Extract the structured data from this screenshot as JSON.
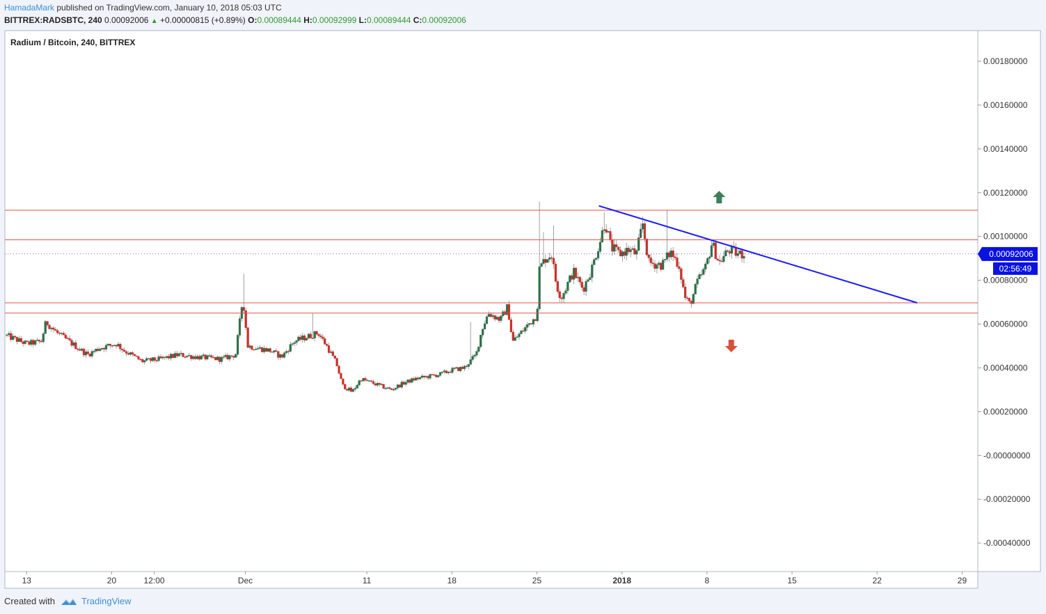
{
  "header": {
    "author": "HamadaMark",
    "published_text": "published on TradingView.com, January 10, 2018 05:03 UTC",
    "symbol": "BITTREX:RADSBTC, 240",
    "last": "0.00092006",
    "change": "+0.00000815 (+0.89%)",
    "o_label": "O:",
    "o_value": "0.00089444",
    "h_label": "H:",
    "h_value": "0.00092999",
    "l_label": "L:",
    "l_value": "0.00089444",
    "c_label": "C:",
    "c_value": "0.00092006"
  },
  "footer": {
    "created_with": "Created with",
    "brand": "TradingView"
  },
  "colors": {
    "up": "#2f6e4a",
    "down": "#c8312a",
    "wick": "#888888",
    "resistance": "#e0504a",
    "trendline": "#1a1aff",
    "price_tag": "#0a12e0",
    "arrow_up": "#3d7f5a",
    "arrow_down": "#d9503a"
  },
  "chart_data": {
    "type": "candlestick",
    "title": "Radium / Bitcoin, 240, BITTREX",
    "y_ticks": [
      "0.00180000",
      "0.00160000",
      "0.00140000",
      "0.00120000",
      "0.00100000",
      "0.00080000",
      "0.00060000",
      "0.00040000",
      "0.00020000",
      "-0.00000000",
      "-0.00020000",
      "-0.00040000"
    ],
    "y_tick_values": [
      0.0018,
      0.0016,
      0.0014,
      0.0012,
      0.001,
      0.0008,
      0.0006,
      0.0004,
      0.0002,
      0,
      -0.0002,
      -0.0004
    ],
    "ylim": [
      -0.00053,
      0.00194
    ],
    "x_ticks": [
      {
        "label": "13",
        "day": 0,
        "bold": false
      },
      {
        "label": "20",
        "day": 7,
        "bold": false
      },
      {
        "label": "12:00",
        "day": 10.5,
        "bold": false
      },
      {
        "label": "Dec",
        "day": 18,
        "bold": false
      },
      {
        "label": "11",
        "day": 28,
        "bold": false
      },
      {
        "label": "18",
        "day": 35,
        "bold": false
      },
      {
        "label": "25",
        "day": 42,
        "bold": false
      },
      {
        "label": "2018",
        "day": 49,
        "bold": true
      },
      {
        "label": "8",
        "day": 56,
        "bold": false
      },
      {
        "label": "15",
        "day": 63,
        "bold": false
      },
      {
        "label": "22",
        "day": 70,
        "bold": false
      },
      {
        "label": "29",
        "day": 77,
        "bold": false
      }
    ],
    "x_domain_days": [
      -1.79,
      78.29
    ],
    "horizontal_levels": [
      0.00112,
      0.000985,
      0.000697,
      0.00065
    ],
    "trendline": {
      "from": {
        "day": 47.1,
        "price": 0.00114
      },
      "to": {
        "day": 73.3,
        "price": 0.000697
      }
    },
    "current_price": {
      "price": 0.00092006,
      "label": "0.00092006",
      "countdown": "02:56:49"
    },
    "arrows": [
      {
        "direction": "up",
        "day": 57.0,
        "price": 0.00118
      },
      {
        "direction": "down",
        "day": 58.0,
        "price": 0.0005
      }
    ],
    "anchors": [
      [
        -1.8,
        0.00055
      ],
      [
        0,
        0.00051
      ],
      [
        1.2,
        0.00052
      ],
      [
        1.6,
        0.00061
      ],
      [
        2.5,
        0.00056
      ],
      [
        4,
        0.0005
      ],
      [
        5,
        0.00046
      ],
      [
        6,
        0.00049
      ],
      [
        7.4,
        0.00051
      ],
      [
        8,
        0.00048
      ],
      [
        9.5,
        0.00043
      ],
      [
        11,
        0.00044
      ],
      [
        12.5,
        0.00046
      ],
      [
        14,
        0.00045
      ],
      [
        16,
        0.00044
      ],
      [
        17.2,
        0.00046
      ],
      [
        17.8,
        0.00072
      ],
      [
        18.2,
        0.0005
      ],
      [
        19,
        0.00049
      ],
      [
        20,
        0.00048
      ],
      [
        21,
        0.00045
      ],
      [
        22,
        0.00052
      ],
      [
        23,
        0.00054
      ],
      [
        24,
        0.00056
      ],
      [
        24.7,
        0.0005
      ],
      [
        25.5,
        0.00042
      ],
      [
        26,
        0.00032
      ],
      [
        26.8,
        0.00029
      ],
      [
        27.5,
        0.00035
      ],
      [
        28.5,
        0.00033
      ],
      [
        30,
        0.0003
      ],
      [
        31,
        0.00033
      ],
      [
        32,
        0.00035
      ],
      [
        33,
        0.00036
      ],
      [
        34,
        0.00037
      ],
      [
        35,
        0.00039
      ],
      [
        36,
        0.0004
      ],
      [
        37,
        0.00046
      ],
      [
        37.5,
        0.00058
      ],
      [
        38,
        0.00065
      ],
      [
        39,
        0.00062
      ],
      [
        39.6,
        0.00068
      ],
      [
        40,
        0.00052
      ],
      [
        41,
        0.00058
      ],
      [
        42,
        0.00064
      ],
      [
        42.2,
        0.00085
      ],
      [
        42.7,
        0.0009
      ],
      [
        43.2,
        0.00092
      ],
      [
        43.6,
        0.00078
      ],
      [
        44,
        0.00072
      ],
      [
        45,
        0.00084
      ],
      [
        45.8,
        0.00076
      ],
      [
        46.5,
        0.00085
      ],
      [
        47.3,
        0.001
      ],
      [
        47.6,
        0.00107
      ],
      [
        48.1,
        0.00095
      ],
      [
        48.8,
        0.00092
      ],
      [
        49.5,
        0.00094
      ],
      [
        50.2,
        0.00092
      ],
      [
        50.7,
        0.00106
      ],
      [
        51.2,
        0.00088
      ],
      [
        52.3,
        0.00087
      ],
      [
        53,
        0.00093
      ],
      [
        53.7,
        0.00087
      ],
      [
        54.2,
        0.00072
      ],
      [
        54.6,
        0.00069
      ],
      [
        55.2,
        0.00079
      ],
      [
        55.9,
        0.00086
      ],
      [
        56.4,
        0.00097
      ],
      [
        57,
        0.00088
      ],
      [
        57.8,
        0.00094
      ],
      [
        58.5,
        0.00092
      ],
      [
        59.1,
        0.00092
      ]
    ],
    "spikes": [
      {
        "day": 17.8,
        "high": 0.00083
      },
      {
        "day": 42.2,
        "high": 0.00116
      },
      {
        "day": 42.6,
        "high": 0.00102
      },
      {
        "day": 43.4,
        "high": 0.00105
      },
      {
        "day": 47.5,
        "high": 0.00111
      },
      {
        "day": 50.7,
        "high": 0.00109
      },
      {
        "day": 52.7,
        "high": 0.00112
      },
      {
        "day": 23.5,
        "high": 0.00065
      },
      {
        "day": 36.6,
        "high": 0.00061
      },
      {
        "day": 37.8,
        "high": 0.00062
      }
    ]
  }
}
